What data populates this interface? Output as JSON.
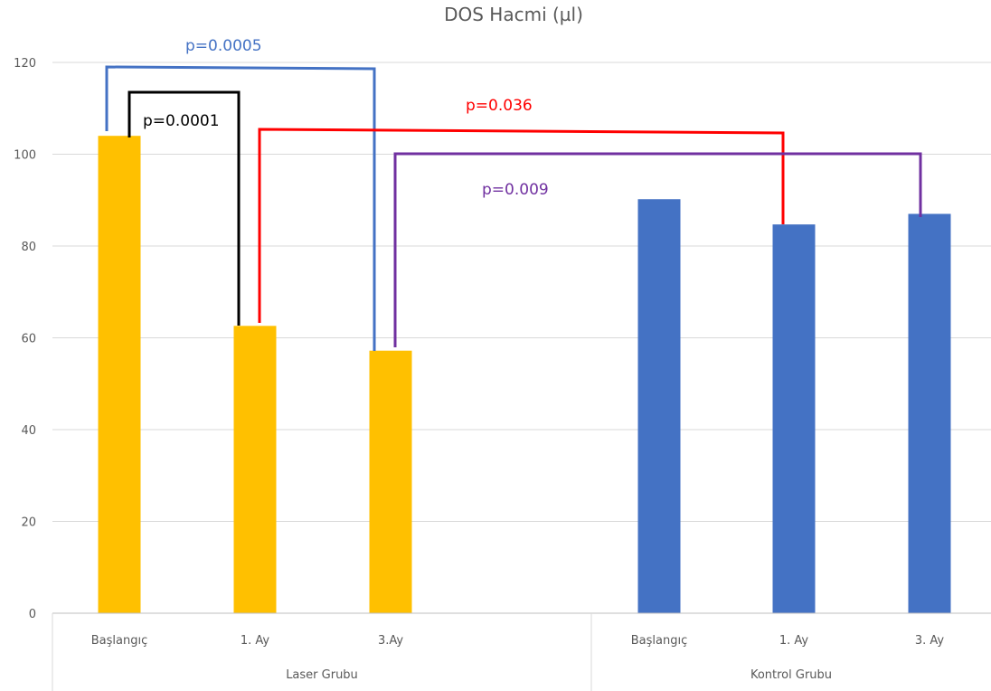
{
  "chart_data": {
    "type": "bar",
    "title": "DOS Hacmi (µl)",
    "xlabel": "",
    "ylabel": "",
    "ylim": [
      0,
      120
    ],
    "yticks": [
      0,
      20,
      40,
      60,
      80,
      100,
      120
    ],
    "grid": true,
    "groups": [
      {
        "name": "Laser Grubu",
        "color": "#ffc000",
        "categories": [
          "Başlangıç",
          "1. Ay",
          "3.Ay"
        ],
        "values": [
          104,
          62.6,
          57.2
        ]
      },
      {
        "name": "Kontrol Grubu",
        "color": "#4472c4",
        "categories": [
          "Başlangıç",
          "1. Ay",
          "3. Ay"
        ],
        "values": [
          90.2,
          84.7,
          87
        ]
      }
    ],
    "annotations": [
      {
        "text": "p=0.0005",
        "color": "#4472c4"
      },
      {
        "text": "p=0.0001",
        "color": "#000000"
      },
      {
        "text": "p=0.036",
        "color": "#ff0000"
      },
      {
        "text": "p=0.009",
        "color": "#7030a0"
      }
    ]
  }
}
